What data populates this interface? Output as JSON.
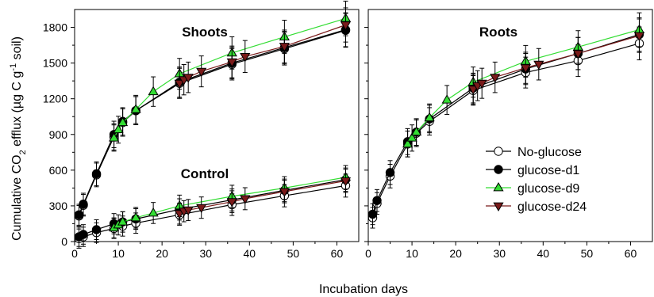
{
  "chart_data": {
    "type": "line",
    "xlabel": "Incubation days",
    "ylabel_parts": {
      "prefix": "Cumulative CO",
      "sub": "2",
      "middle": " efflux (µg C g",
      "sup": "-1",
      "suffix": " soil)"
    },
    "xlim": [
      0,
      65
    ],
    "ylim": [
      0,
      1950
    ],
    "xticks": [
      0,
      10,
      20,
      30,
      40,
      50,
      60
    ],
    "yticks": [
      0,
      300,
      600,
      900,
      1200,
      1500,
      1800
    ],
    "legend": {
      "placement": "right-middle",
      "entries": [
        "No-glucose",
        "glucose-d1",
        "glucose-d9",
        "glucose-d24"
      ]
    },
    "series_styles": {
      "No-glucose": {
        "marker": "circle",
        "fill": "#ffffff",
        "line": "#000000"
      },
      "glucose-d1": {
        "marker": "circle",
        "fill": "#000000",
        "line": "#000000"
      },
      "glucose-d9": {
        "marker": "triangle-up",
        "fill": "#33dd33",
        "line": "#33dd33"
      },
      "glucose-d24": {
        "marker": "triangle-down",
        "fill": "#7a1a1a",
        "line": "#7a1a1a"
      }
    },
    "panels": [
      {
        "label": "Shoots",
        "groups": [
          {
            "label": "",
            "series": [
              {
                "name": "No-glucose",
                "x": [
                  1,
                  2,
                  5,
                  9,
                  11,
                  14,
                  24,
                  36,
                  48,
                  62
                ],
                "y": [
                  215,
                  305,
                  560,
                  880,
                  1000,
                  1100,
                  1330,
                  1490,
                  1620,
                  1775
                ]
              },
              {
                "name": "glucose-d1",
                "x": [
                  1,
                  2,
                  5,
                  9,
                  11,
                  14,
                  24,
                  36,
                  48,
                  62
                ],
                "y": [
                  225,
                  315,
                  570,
                  900,
                  1010,
                  1100,
                  1340,
                  1500,
                  1630,
                  1780
                ]
              },
              {
                "name": "glucose-d9",
                "x": [
                  9,
                  10,
                  11,
                  14,
                  18,
                  24,
                  36,
                  48,
                  62
                ],
                "y": [
                  870,
                  940,
                  1000,
                  1110,
                  1260,
                  1410,
                  1585,
                  1720,
                  1875
                ]
              },
              {
                "name": "glucose-d24",
                "x": [
                  24,
                  25,
                  26,
                  29,
                  36,
                  39,
                  48,
                  62
                ],
                "y": [
                  1330,
                  1360,
                  1380,
                  1430,
                  1510,
                  1555,
                  1640,
                  1820
                ]
              }
            ]
          },
          {
            "label": "Control",
            "series": [
              {
                "name": "No-glucose",
                "x": [
                  1,
                  2,
                  5,
                  9,
                  11,
                  14,
                  24,
                  36,
                  48,
                  62
                ],
                "y": [
                  25,
                  40,
                  75,
                  110,
                  130,
                  155,
                  225,
                  310,
                  385,
                  470
                ]
              },
              {
                "name": "glucose-d1",
                "x": [
                  1,
                  2,
                  5,
                  9,
                  11,
                  14,
                  24,
                  36,
                  48,
                  62
                ],
                "y": [
                  40,
                  60,
                  100,
                  150,
                  165,
                  190,
                  270,
                  350,
                  430,
                  520
                ]
              },
              {
                "name": "glucose-d9",
                "x": [
                  9,
                  10,
                  11,
                  14,
                  18,
                  24,
                  36,
                  48,
                  62
                ],
                "y": [
                  115,
                  140,
                  165,
                  200,
                  240,
                  300,
                  380,
                  450,
                  540
                ]
              },
              {
                "name": "glucose-d24",
                "x": [
                  24,
                  25,
                  26,
                  29,
                  36,
                  39,
                  48,
                  62
                ],
                "y": [
                  235,
                  255,
                  265,
                  285,
                  335,
                  360,
                  420,
                  510
                ]
              }
            ]
          }
        ]
      },
      {
        "label": "Roots",
        "groups": [
          {
            "label": "",
            "series": [
              {
                "name": "No-glucose",
                "x": [
                  1,
                  2,
                  5,
                  9,
                  11,
                  14,
                  24,
                  36,
                  48,
                  62
                ],
                "y": [
                  200,
                  320,
                  550,
                  820,
                  910,
                  1010,
                  1270,
                  1420,
                  1520,
                  1665
                ]
              },
              {
                "name": "glucose-d1",
                "x": [
                  1,
                  2,
                  5,
                  9,
                  11,
                  14,
                  24,
                  36,
                  48,
                  62
                ],
                "y": [
                  230,
                  345,
                  580,
                  840,
                  920,
                  1030,
                  1290,
                  1450,
                  1580,
                  1740
                ]
              },
              {
                "name": "glucose-d9",
                "x": [
                  9,
                  10,
                  11,
                  14,
                  18,
                  24,
                  36,
                  48,
                  62
                ],
                "y": [
                  820,
                  870,
                  920,
                  1040,
                  1190,
                  1340,
                  1515,
                  1635,
                  1780
                ]
              },
              {
                "name": "glucose-d24",
                "x": [
                  24,
                  25,
                  26,
                  29,
                  36,
                  39,
                  48,
                  62
                ],
                "y": [
                  1280,
                  1310,
                  1330,
                  1380,
                  1460,
                  1490,
                  1580,
                  1730
                ]
              }
            ]
          }
        ]
      }
    ]
  }
}
